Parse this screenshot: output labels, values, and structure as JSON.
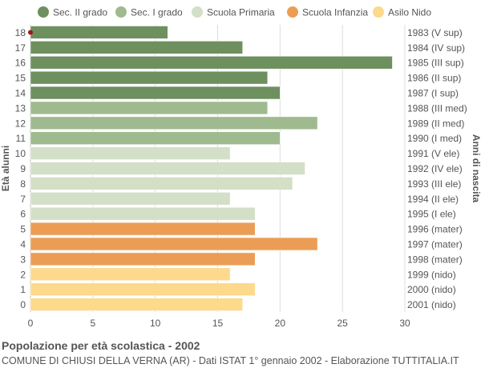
{
  "chart_data": {
    "type": "bar",
    "orientation": "horizontal",
    "title": "Popolazione per età scolastica - 2002",
    "subtitle": "COMUNE DI CHIUSI DELLA VERNA (AR) - Dati ISTAT 1° gennaio 2002 - Elaborazione TUTTITALIA.IT",
    "ylabel": "Età alunni",
    "ylabel_right": "Anni di nascita",
    "xlim": [
      0,
      30
    ],
    "xticks": [
      0,
      5,
      10,
      15,
      20,
      25,
      30
    ],
    "grid": true,
    "legend_position": "top",
    "legend": [
      {
        "label": "Sec. II grado",
        "color": "#6e8f5e"
      },
      {
        "label": "Sec. I grado",
        "color": "#9fba8f"
      },
      {
        "label": "Scuola Primaria",
        "color": "#d3dfc6"
      },
      {
        "label": "Scuola Infanzia",
        "color": "#eb9d55"
      },
      {
        "label": "Asilo Nido",
        "color": "#fdd98b"
      }
    ],
    "bars": [
      {
        "age": "18",
        "birth": "1983 (V sup)",
        "value": 11,
        "group": 0
      },
      {
        "age": "17",
        "birth": "1984 (IV sup)",
        "value": 17,
        "group": 0
      },
      {
        "age": "16",
        "birth": "1985 (III sup)",
        "value": 29,
        "group": 0
      },
      {
        "age": "15",
        "birth": "1986 (II sup)",
        "value": 19,
        "group": 0
      },
      {
        "age": "14",
        "birth": "1987 (I sup)",
        "value": 20,
        "group": 0
      },
      {
        "age": "13",
        "birth": "1988 (III med)",
        "value": 19,
        "group": 1
      },
      {
        "age": "12",
        "birth": "1989 (II med)",
        "value": 23,
        "group": 1
      },
      {
        "age": "11",
        "birth": "1990 (I med)",
        "value": 20,
        "group": 1
      },
      {
        "age": "10",
        "birth": "1991 (V ele)",
        "value": 16,
        "group": 2
      },
      {
        "age": "9",
        "birth": "1992 (IV ele)",
        "value": 22,
        "group": 2
      },
      {
        "age": "8",
        "birth": "1993 (III ele)",
        "value": 21,
        "group": 2
      },
      {
        "age": "7",
        "birth": "1994 (II ele)",
        "value": 16,
        "group": 2
      },
      {
        "age": "6",
        "birth": "1995 (I ele)",
        "value": 18,
        "group": 2
      },
      {
        "age": "5",
        "birth": "1996 (mater)",
        "value": 18,
        "group": 3
      },
      {
        "age": "4",
        "birth": "1997 (mater)",
        "value": 23,
        "group": 3
      },
      {
        "age": "3",
        "birth": "1998 (mater)",
        "value": 18,
        "group": 3
      },
      {
        "age": "2",
        "birth": "1999 (nido)",
        "value": 16,
        "group": 4
      },
      {
        "age": "1",
        "birth": "2000 (nido)",
        "value": 18,
        "group": 4
      },
      {
        "age": "0",
        "birth": "2001 (nido)",
        "value": 17,
        "group": 4
      }
    ],
    "marker_color": "#a01818"
  }
}
